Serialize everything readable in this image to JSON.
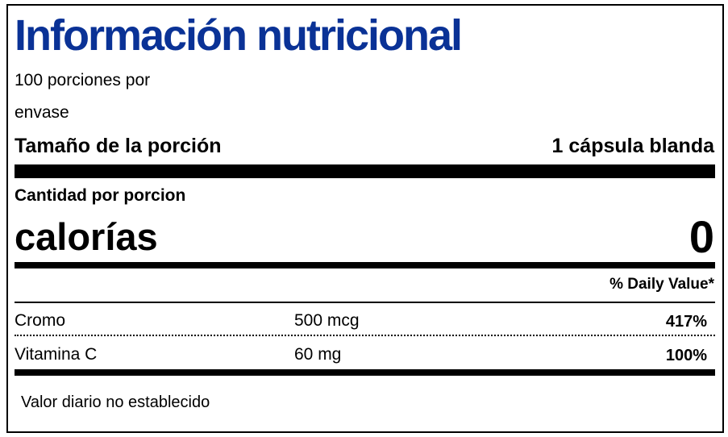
{
  "label": {
    "title": "Información nutricional",
    "servings_line1": "100 porciones por",
    "servings_line2": "envase",
    "serving_size_label": "Tamaño de la porción",
    "serving_size_value": "1 cápsula blanda",
    "amount_per_serving": "Cantidad por porcion",
    "calories_label": "calorías",
    "calories_value": "0",
    "daily_value_header": "% Daily Value*",
    "nutrients": [
      {
        "name": "Cromo",
        "amount": "500 mcg",
        "dv": "417%"
      },
      {
        "name": "Vitamina C",
        "amount": "60 mg",
        "dv": "100%"
      }
    ],
    "footnote": "Valor diario no establecido",
    "title_color": "#0a3296"
  }
}
